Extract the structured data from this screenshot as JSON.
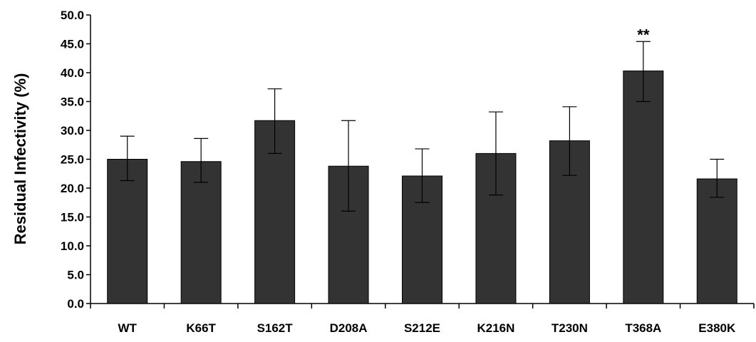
{
  "chart_data": {
    "type": "bar",
    "title": "",
    "xlabel": "",
    "ylabel": "Residual Infectivity (%)",
    "ylim": [
      0,
      50
    ],
    "yticks": [
      "0.0",
      "5.0",
      "10.0",
      "15.0",
      "20.0",
      "25.0",
      "30.0",
      "35.0",
      "40.0",
      "45.0",
      "50.0"
    ],
    "categories": [
      "WT",
      "K66T",
      "S162T",
      "D208A",
      "S212E",
      "K216N",
      "T230N",
      "T368A",
      "E380K"
    ],
    "values": [
      25.0,
      24.6,
      31.7,
      23.8,
      22.1,
      26.0,
      28.2,
      40.3,
      21.6
    ],
    "error_upper": [
      29.0,
      28.6,
      37.2,
      31.7,
      26.8,
      33.2,
      34.1,
      45.4,
      25.0
    ],
    "error_lower": [
      21.3,
      21.0,
      26.0,
      16.0,
      17.5,
      18.8,
      22.2,
      35.0,
      18.4
    ],
    "annotations": [
      {
        "category": "T368A",
        "text": "**"
      }
    ],
    "bar_color": "#333333",
    "grid": false,
    "legend": "none"
  }
}
